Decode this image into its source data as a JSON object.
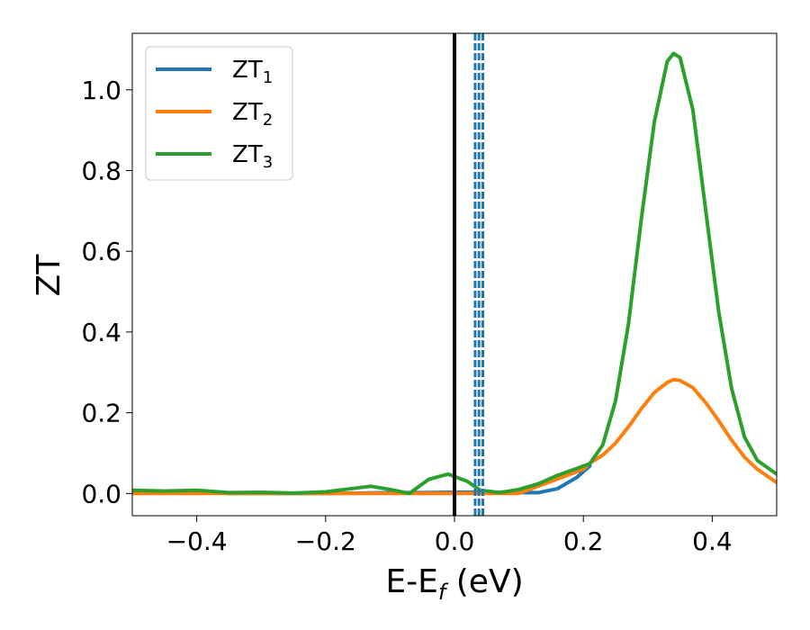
{
  "chart_data": {
    "type": "line",
    "xlabel": "E-E",
    "xlabel_sub": "f",
    "xlabel_suffix": " (eV)",
    "ylabel": "ZT",
    "xlim": [
      -0.5,
      0.5
    ],
    "ylim": [
      -0.055,
      1.14
    ],
    "xticks": [
      -0.4,
      -0.2,
      0.0,
      0.2,
      0.4
    ],
    "xtick_labels": [
      "−0.4",
      "−0.2",
      "0.0",
      "0.2",
      "0.4"
    ],
    "yticks": [
      0.0,
      0.2,
      0.4,
      0.6,
      0.8,
      1.0
    ],
    "ytick_labels": [
      "0.0",
      "0.2",
      "0.4",
      "0.6",
      "0.8",
      "1.0"
    ],
    "grid": false,
    "legend_position": "top-left",
    "series": [
      {
        "name": "ZT",
        "name_sub": "1",
        "color": "#1f77b4",
        "x": [
          -0.5,
          -0.45,
          -0.4,
          -0.35,
          -0.3,
          -0.25,
          -0.2,
          -0.15,
          -0.1,
          -0.05,
          0.0,
          0.05,
          0.1,
          0.13,
          0.16,
          0.19,
          0.21
        ],
        "y": [
          0.005,
          0.004,
          0.002,
          0.0,
          0.0,
          0.0,
          0.0,
          0.001,
          0.002,
          0.002,
          0.003,
          0.003,
          0.002,
          0.002,
          0.012,
          0.04,
          0.068
        ]
      },
      {
        "name": "ZT",
        "name_sub": "2",
        "color": "#ff7f0e",
        "x": [
          -0.5,
          -0.4,
          -0.3,
          -0.2,
          -0.1,
          0.0,
          0.1,
          0.2,
          0.21,
          0.23,
          0.25,
          0.27,
          0.29,
          0.31,
          0.33,
          0.34,
          0.35,
          0.37,
          0.39,
          0.41,
          0.43,
          0.45,
          0.47,
          0.5
        ],
        "y": [
          0.0,
          0.0,
          0.0,
          0.0,
          0.0,
          0.0,
          0.0,
          0.06,
          0.075,
          0.095,
          0.125,
          0.165,
          0.21,
          0.25,
          0.275,
          0.282,
          0.28,
          0.262,
          0.225,
          0.18,
          0.132,
          0.09,
          0.06,
          0.027
        ]
      },
      {
        "name": "ZT",
        "name_sub": "3",
        "color": "#2ca02c",
        "x": [
          -0.5,
          -0.45,
          -0.4,
          -0.35,
          -0.3,
          -0.25,
          -0.2,
          -0.17,
          -0.13,
          -0.1,
          -0.07,
          -0.04,
          -0.01,
          0.02,
          0.04,
          0.07,
          0.1,
          0.13,
          0.16,
          0.19,
          0.21,
          0.23,
          0.25,
          0.27,
          0.29,
          0.31,
          0.33,
          0.34,
          0.35,
          0.37,
          0.39,
          0.41,
          0.43,
          0.45,
          0.47,
          0.5
        ],
        "y": [
          0.008,
          0.006,
          0.008,
          0.002,
          0.003,
          0.001,
          0.004,
          0.01,
          0.018,
          0.01,
          0.0,
          0.035,
          0.048,
          0.03,
          0.008,
          0.002,
          0.01,
          0.024,
          0.045,
          0.062,
          0.074,
          0.12,
          0.23,
          0.42,
          0.68,
          0.92,
          1.07,
          1.09,
          1.08,
          0.95,
          0.7,
          0.45,
          0.26,
          0.14,
          0.082,
          0.048
        ]
      }
    ],
    "vlines": [
      {
        "x": 0.0,
        "color": "#000000",
        "style": "solid"
      },
      {
        "x": 0.032,
        "color": "#1f77b4",
        "style": "dashed"
      },
      {
        "x": 0.038,
        "color": "#1f77b4",
        "style": "dashed"
      },
      {
        "x": 0.044,
        "color": "#1f77b4",
        "style": "dashed"
      }
    ]
  }
}
